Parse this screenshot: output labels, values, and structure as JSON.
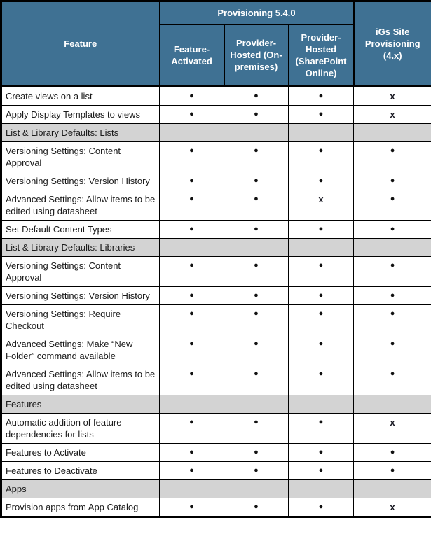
{
  "table": {
    "header": {
      "feature_label": "Feature",
      "group_label": "Provisioning 5.4.0",
      "sub_columns": [
        "Feature-Activated",
        "Provider-Hosted (On-premises)",
        "Provider-Hosted (SharePoint Online)"
      ],
      "igs_label": "iGs Site Provisioning (4.x)"
    },
    "symbols": {
      "supported": "●",
      "not_supported": "x"
    },
    "colors": {
      "header_bg": "#3F7193",
      "section_bg": "#D3D3D3",
      "border": "#000000",
      "header_text": "#FFFFFF",
      "body_text": "#1A1A1A"
    },
    "rows": [
      {
        "type": "data",
        "feature": "Create views on a list",
        "values": [
          "●",
          "●",
          "●",
          "x"
        ]
      },
      {
        "type": "data",
        "feature": "Apply Display Templates to views",
        "values": [
          "●",
          "●",
          "●",
          "x"
        ]
      },
      {
        "type": "section",
        "feature": "List & Library Defaults: Lists"
      },
      {
        "type": "data",
        "feature": "Versioning Settings: Content Approval",
        "values": [
          "●",
          "●",
          "●",
          "●"
        ]
      },
      {
        "type": "data",
        "feature": "Versioning Settings: Version History",
        "values": [
          "●",
          "●",
          "●",
          "●"
        ]
      },
      {
        "type": "data",
        "feature": "Advanced Settings: Allow items to be edited using datasheet",
        "values": [
          "●",
          "●",
          "x",
          "●"
        ]
      },
      {
        "type": "data",
        "feature": "Set Default Content Types",
        "values": [
          "●",
          "●",
          "●",
          "●"
        ]
      },
      {
        "type": "section",
        "feature": "List & Library Defaults: Libraries"
      },
      {
        "type": "data",
        "feature": "Versioning Settings: Content Approval",
        "values": [
          "●",
          "●",
          "●",
          "●"
        ]
      },
      {
        "type": "data",
        "feature": "Versioning Settings: Version History",
        "values": [
          "●",
          "●",
          "●",
          "●"
        ]
      },
      {
        "type": "data",
        "feature": "Versioning Settings: Require Checkout",
        "values": [
          "●",
          "●",
          "●",
          "●"
        ]
      },
      {
        "type": "data",
        "feature": "Advanced Settings: Make “New Folder” command available",
        "values": [
          "●",
          "●",
          "●",
          "●"
        ]
      },
      {
        "type": "data",
        "feature": "Advanced Settings: Allow items to be edited using datasheet",
        "values": [
          "●",
          "●",
          "●",
          "●"
        ]
      },
      {
        "type": "section",
        "feature": "Features"
      },
      {
        "type": "data",
        "feature": "Automatic addition of feature dependencies for lists",
        "values": [
          "●",
          "●",
          "●",
          "x"
        ]
      },
      {
        "type": "data",
        "feature": "Features to Activate",
        "values": [
          "●",
          "●",
          "●",
          "●"
        ]
      },
      {
        "type": "data",
        "feature": "Features to Deactivate",
        "values": [
          "●",
          "●",
          "●",
          "●"
        ]
      },
      {
        "type": "section",
        "feature": "Apps"
      },
      {
        "type": "data",
        "feature": "Provision apps from App Catalog",
        "values": [
          "●",
          "●",
          "●",
          "x"
        ]
      }
    ]
  }
}
